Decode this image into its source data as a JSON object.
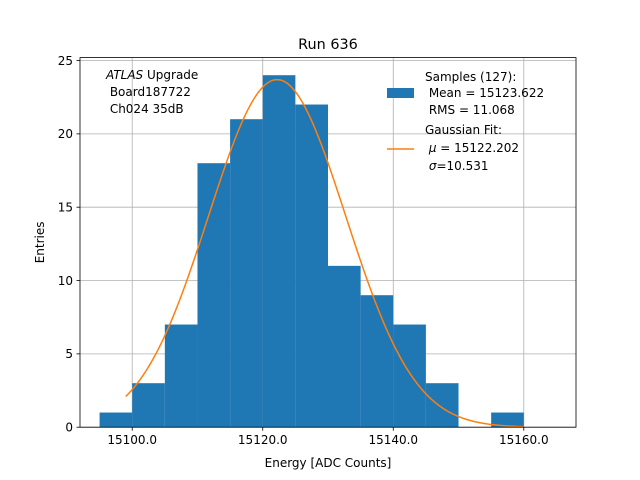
{
  "chart_data": {
    "type": "bar",
    "title": "Run 636",
    "xlabel": "Energy [ADC Counts]",
    "ylabel": "Entries",
    "xlim": [
      15092,
      15168
    ],
    "ylim": [
      0,
      25.2
    ],
    "xticks": [
      15100,
      15120,
      15140,
      15160
    ],
    "xtick_labels": [
      "15100.0",
      "15120.0",
      "15140.0",
      "15160.0"
    ],
    "yticks": [
      0,
      5,
      10,
      15,
      20,
      25
    ],
    "ytick_labels": [
      "0",
      "5",
      "10",
      "15",
      "20",
      "25"
    ],
    "grid": true,
    "bin_width": 5,
    "bins": [
      {
        "x0": 15095,
        "count": 1
      },
      {
        "x0": 15100,
        "count": 3
      },
      {
        "x0": 15105,
        "count": 7
      },
      {
        "x0": 15110,
        "count": 18
      },
      {
        "x0": 15115,
        "count": 21
      },
      {
        "x0": 15120,
        "count": 24
      },
      {
        "x0": 15125,
        "count": 22
      },
      {
        "x0": 15130,
        "count": 11
      },
      {
        "x0": 15135,
        "count": 9
      },
      {
        "x0": 15140,
        "count": 7
      },
      {
        "x0": 15145,
        "count": 3
      },
      {
        "x0": 15150,
        "count": 0
      },
      {
        "x0": 15155,
        "count": 1
      }
    ],
    "fit": {
      "mu": 15122.202,
      "sigma": 10.531,
      "amplitude": 23.7,
      "x_range": [
        15099,
        15160
      ]
    },
    "annotation": {
      "atlas": "ATLAS",
      "upgrade": " Upgrade",
      "line2": " Board187722",
      "line3": " Ch024 35dB"
    },
    "legend": {
      "placement": "top-right",
      "samples_line1": "Samples (127):",
      "samples_line2": " Mean = 15123.622",
      "samples_line3": " RMS = 11.068",
      "fit_line1": "Gaussian Fit:",
      "fit_mu_symbol": "μ",
      "fit_mu_rest": " = 15122.202",
      "fit_sigma_symbol": "σ",
      "fit_sigma_rest": "=10.531"
    },
    "colors": {
      "bars": "#1f77b4",
      "fit": "#ff7f0e",
      "grid": "#b0b0b0"
    }
  }
}
